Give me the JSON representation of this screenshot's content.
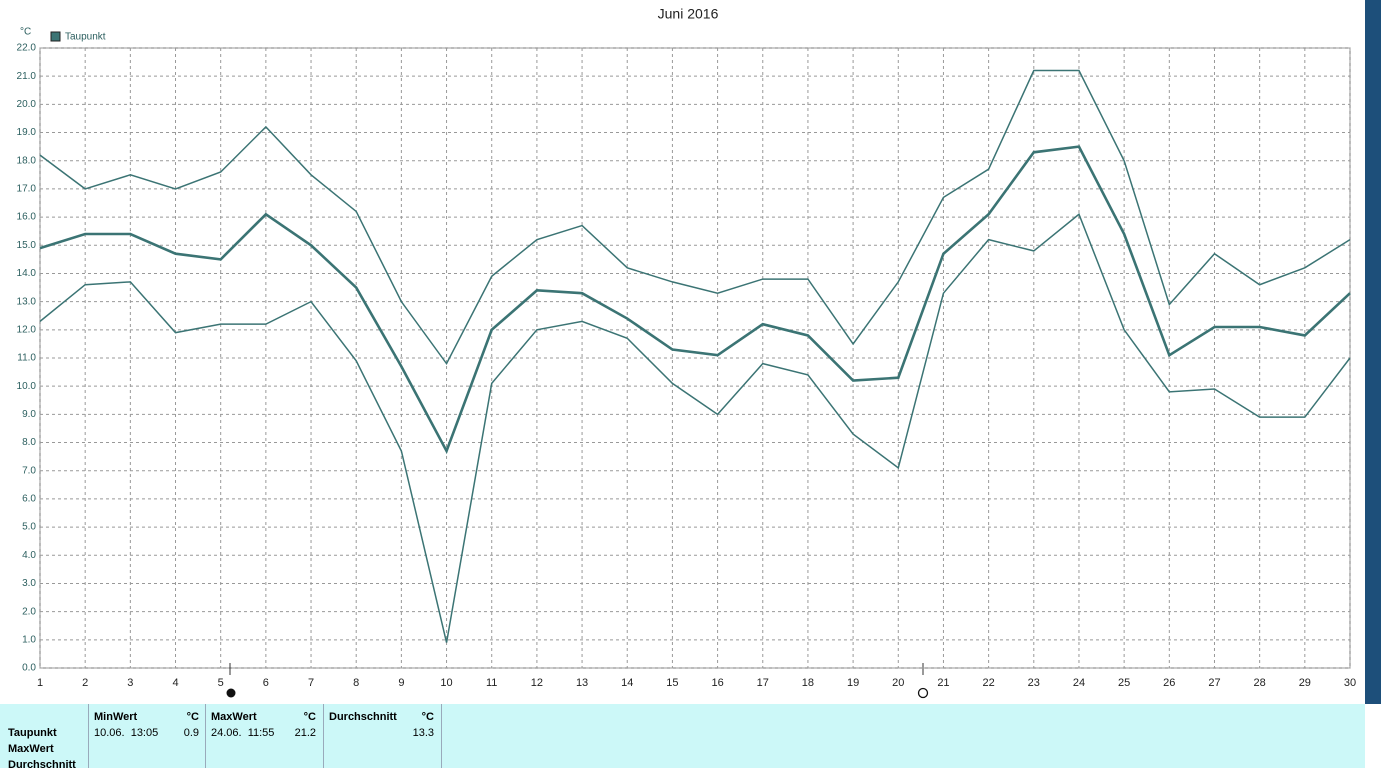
{
  "chart_data": {
    "type": "line",
    "title": "Juni 2016",
    "y_label": "°C",
    "x": [
      1,
      2,
      3,
      4,
      5,
      6,
      7,
      8,
      9,
      10,
      11,
      12,
      13,
      14,
      15,
      16,
      17,
      18,
      19,
      20,
      21,
      22,
      23,
      24,
      25,
      26,
      27,
      28,
      29,
      30
    ],
    "xlim": [
      1,
      30
    ],
    "xticks": [
      1,
      2,
      3,
      4,
      5,
      6,
      7,
      8,
      9,
      10,
      11,
      12,
      13,
      14,
      15,
      16,
      17,
      18,
      19,
      20,
      21,
      22,
      23,
      24,
      25,
      26,
      27,
      28,
      29,
      30
    ],
    "ylim": [
      0,
      22
    ],
    "yticks": [
      {
        "value": 0,
        "label": "0.0"
      },
      {
        "value": 1,
        "label": "1.0"
      },
      {
        "value": 2,
        "label": "2.0"
      },
      {
        "value": 3,
        "label": "3.0"
      },
      {
        "value": 4,
        "label": "4.0"
      },
      {
        "value": 5,
        "label": "5.0"
      },
      {
        "value": 6,
        "label": "6.0"
      },
      {
        "value": 7,
        "label": "7.0"
      },
      {
        "value": 8,
        "label": "8.0"
      },
      {
        "value": 9,
        "label": "9.0"
      },
      {
        "value": 10,
        "label": "10.0"
      },
      {
        "value": 11,
        "label": "11.0"
      },
      {
        "value": 12,
        "label": "12.0"
      },
      {
        "value": 13,
        "label": "13.0"
      },
      {
        "value": 14,
        "label": "14.0"
      },
      {
        "value": 15,
        "label": "15.0"
      },
      {
        "value": 16,
        "label": "16.0"
      },
      {
        "value": 17,
        "label": "17.0"
      },
      {
        "value": 18,
        "label": "18.0"
      },
      {
        "value": 19,
        "label": "19.0"
      },
      {
        "value": 20,
        "label": "20.0"
      },
      {
        "value": 21,
        "label": "21.0"
      },
      {
        "value": 22,
        "label": "22.0"
      }
    ],
    "grid": true,
    "series": [
      {
        "name": "Taupunkt",
        "color": "#3b7474",
        "width": 2.6,
        "values": [
          14.9,
          15.4,
          15.4,
          14.7,
          14.5,
          16.1,
          15.0,
          13.5,
          10.7,
          7.7,
          12.0,
          13.4,
          13.3,
          12.4,
          11.3,
          11.1,
          12.2,
          11.8,
          10.2,
          10.3,
          14.7,
          16.1,
          18.3,
          18.5,
          15.4,
          11.1,
          12.1,
          12.1,
          11.8,
          13.3
        ]
      },
      {
        "color": "#3b7474",
        "width": 1.5,
        "values": [
          18.2,
          17.0,
          17.5,
          17.0,
          17.6,
          19.2,
          17.5,
          16.2,
          13.0,
          10.8,
          13.9,
          15.2,
          15.7,
          14.2,
          13.7,
          13.3,
          13.8,
          13.8,
          11.5,
          13.7,
          16.7,
          17.7,
          21.2,
          21.2,
          18.0,
          12.9,
          14.7,
          13.6,
          14.2,
          15.2
        ]
      },
      {
        "color": "#3b7474",
        "width": 1.5,
        "values": [
          12.3,
          13.6,
          13.7,
          11.9,
          12.2,
          12.2,
          13.0,
          10.9,
          7.7,
          0.9,
          10.1,
          12.0,
          12.3,
          11.7,
          10.1,
          9.0,
          10.8,
          10.4,
          8.3,
          7.1,
          13.3,
          15.2,
          14.8,
          16.1,
          12.0,
          9.8,
          9.9,
          8.9,
          8.9,
          11.0
        ]
      }
    ]
  },
  "stats_table": {
    "row_labels": [
      "Taupunkt",
      "MaxWert",
      "Durchschnitt"
    ],
    "columns": [
      {
        "header": "MinWert",
        "unit": "°C",
        "when": "10.06.  13:05",
        "value": 0.9
      },
      {
        "header": "MaxWert",
        "unit": "°C",
        "when": "24.06.  11:55",
        "value": 21.2
      },
      {
        "header": "Durchschnitt",
        "unit": "°C",
        "value": 13.3
      }
    ]
  }
}
